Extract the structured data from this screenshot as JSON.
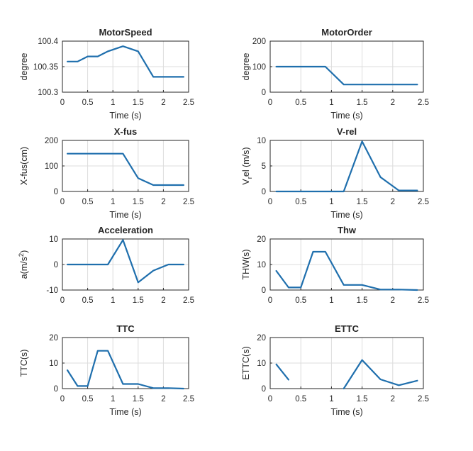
{
  "figure": {
    "line_color": "#1f6fad"
  },
  "chart_data": [
    {
      "type": "line",
      "title": "MotorSpeed",
      "xlabel": "Time (s)",
      "ylabel": "degree",
      "xlim": [
        0,
        2.5
      ],
      "ylim": [
        100.3,
        100.4
      ],
      "xticks": [
        0,
        0.5,
        1,
        1.5,
        2,
        2.5
      ],
      "xtick_labels": [
        "0",
        "0.5",
        "1",
        "1.5",
        "2",
        "2.5"
      ],
      "yticks": [
        100.3,
        100.35,
        100.4
      ],
      "ytick_labels": [
        "100.3",
        "100.35",
        "100.4"
      ],
      "grid": true,
      "series": [
        {
          "segments": [
            {
              "x": [
                0.1,
                0.3,
                0.5,
                0.7,
                0.9,
                1.2,
                1.5,
                1.8,
                2.1,
                2.4
              ],
              "y": [
                100.36,
                100.36,
                100.37,
                100.37,
                100.38,
                100.39,
                100.38,
                100.33,
                100.33,
                100.33
              ]
            }
          ]
        }
      ]
    },
    {
      "type": "line",
      "title": "MotorOrder",
      "xlabel": "Time (s)",
      "ylabel": "degree",
      "xlim": [
        0,
        2.5
      ],
      "ylim": [
        0,
        200
      ],
      "xticks": [
        0,
        0.5,
        1,
        1.5,
        2,
        2.5
      ],
      "xtick_labels": [
        "0",
        "0.5",
        "1",
        "1.5",
        "2",
        "2.5"
      ],
      "yticks": [
        0,
        100,
        200
      ],
      "ytick_labels": [
        "0",
        "100",
        "200"
      ],
      "grid": true,
      "series": [
        {
          "segments": [
            {
              "x": [
                0.1,
                0.5,
                0.9,
                1.2,
                1.5,
                1.8,
                2.1,
                2.4
              ],
              "y": [
                100,
                100,
                100,
                30,
                30,
                30,
                30,
                30
              ]
            }
          ]
        }
      ]
    },
    {
      "type": "line",
      "title": "X-fus",
      "xlabel": "Time (s)",
      "ylabel": "X-fus(cm)",
      "xlim": [
        0,
        2.5
      ],
      "ylim": [
        0,
        200
      ],
      "xticks": [
        0,
        0.5,
        1,
        1.5,
        2,
        2.5
      ],
      "xtick_labels": [
        "0",
        "0.5",
        "1",
        "1.5",
        "2",
        "2.5"
      ],
      "yticks": [
        0,
        100,
        200
      ],
      "ytick_labels": [
        "0",
        "100",
        "200"
      ],
      "grid": true,
      "series": [
        {
          "segments": [
            {
              "x": [
                0.1,
                0.5,
                0.9,
                1.2,
                1.5,
                1.8,
                2.1,
                2.4
              ],
              "y": [
                148,
                148,
                148,
                148,
                52,
                25,
                25,
                25
              ]
            }
          ]
        }
      ]
    },
    {
      "type": "line",
      "title": "V-rel",
      "xlabel": "Time (s)",
      "ylabel": "V_rel (m/s)",
      "ylabel_main": "V",
      "ylabel_sub": "r",
      "ylabel_rest": "el (m/s)",
      "xlim": [
        0,
        2.5
      ],
      "ylim": [
        0,
        10
      ],
      "xticks": [
        0,
        0.5,
        1,
        1.5,
        2,
        2.5
      ],
      "xtick_labels": [
        "0",
        "0.5",
        "1",
        "1.5",
        "2",
        "2.5"
      ],
      "yticks": [
        0,
        5,
        10
      ],
      "ytick_labels": [
        "0",
        "5",
        "10"
      ],
      "grid": true,
      "series": [
        {
          "segments": [
            {
              "x": [
                0.1,
                0.5,
                0.9,
                1.2,
                1.5,
                1.8,
                2.1,
                2.4
              ],
              "y": [
                0,
                0,
                0,
                0,
                9.8,
                2.8,
                0.2,
                0.2
              ]
            }
          ]
        }
      ]
    },
    {
      "type": "line",
      "title": "Acceleration",
      "xlabel": "",
      "ylabel": "a(m/s^2)",
      "ylabel_main": "a(m/s",
      "ylabel_sup": "2",
      "ylabel_rest": ")",
      "xlim": [
        0,
        2.5
      ],
      "ylim": [
        -10,
        10
      ],
      "xticks": [
        0,
        0.5,
        1,
        1.5,
        2,
        2.5
      ],
      "xtick_labels": [
        "0",
        "0.5",
        "1",
        "1.5",
        "2",
        "2.5"
      ],
      "yticks": [
        -10,
        0,
        10
      ],
      "ytick_labels": [
        "-10",
        "0",
        "10"
      ],
      "grid": true,
      "series": [
        {
          "segments": [
            {
              "x": [
                0.1,
                0.5,
                0.9,
                1.2,
                1.5,
                1.8,
                2.1,
                2.4
              ],
              "y": [
                0,
                0,
                0,
                9.6,
                -7,
                -2.4,
                0,
                0
              ]
            }
          ]
        }
      ]
    },
    {
      "type": "line",
      "title": "Thw",
      "xlabel": "",
      "ylabel": "THW(s)",
      "xlim": [
        0,
        2.5
      ],
      "ylim": [
        0,
        20
      ],
      "xticks": [
        0,
        0.5,
        1,
        1.5,
        2,
        2.5
      ],
      "xtick_labels": [
        "0",
        "0.5",
        "1",
        "1.5",
        "2",
        "2.5"
      ],
      "yticks": [
        0,
        10,
        20
      ],
      "ytick_labels": [
        "0",
        "10",
        "20"
      ],
      "grid": true,
      "series": [
        {
          "segments": [
            {
              "x": [
                0.1,
                0.3,
                0.5,
                0.7,
                0.9,
                1.2,
                1.5,
                1.8,
                2.1,
                2.4
              ],
              "y": [
                7.5,
                1,
                1,
                15,
                15,
                2,
                2,
                0.2,
                0.2,
                0
              ]
            }
          ]
        }
      ]
    },
    {
      "type": "line",
      "title": "TTC",
      "xlabel": "Time (s)",
      "ylabel": "TTC(s)",
      "xlim": [
        0,
        2.5
      ],
      "ylim": [
        0,
        20
      ],
      "xticks": [
        0,
        0.5,
        1,
        1.5,
        2,
        2.5
      ],
      "xtick_labels": [
        "0",
        "0.5",
        "1",
        "1.5",
        "2",
        "2.5"
      ],
      "yticks": [
        0,
        10,
        20
      ],
      "ytick_labels": [
        "0",
        "10",
        "20"
      ],
      "grid": true,
      "series": [
        {
          "segments": [
            {
              "x": [
                0.1,
                0.3,
                0.5,
                0.7,
                0.9,
                1.2,
                1.5,
                1.8,
                2.1,
                2.4
              ],
              "y": [
                7.2,
                1,
                1,
                14.8,
                14.8,
                1.8,
                1.8,
                0.2,
                0.2,
                0
              ]
            }
          ]
        }
      ]
    },
    {
      "type": "line",
      "title": "ETTC",
      "xlabel": "Time (s)",
      "ylabel": "ETTC(s)",
      "xlim": [
        0,
        2.5
      ],
      "ylim": [
        0,
        20
      ],
      "xticks": [
        0,
        0.5,
        1,
        1.5,
        2,
        2.5
      ],
      "xtick_labels": [
        "0",
        "0.5",
        "1",
        "1.5",
        "2",
        "2.5"
      ],
      "yticks": [
        0,
        10,
        20
      ],
      "ytick_labels": [
        "0",
        "10",
        "20"
      ],
      "grid": true,
      "series": [
        {
          "segments": [
            {
              "x": [
                0.1,
                0.3
              ],
              "y": [
                9.5,
                3.5
              ]
            },
            {
              "x": [
                1.2,
                1.5,
                1.8,
                2.1,
                2.4
              ],
              "y": [
                0,
                11.2,
                3.6,
                1.3,
                3.1
              ]
            }
          ]
        }
      ]
    }
  ]
}
